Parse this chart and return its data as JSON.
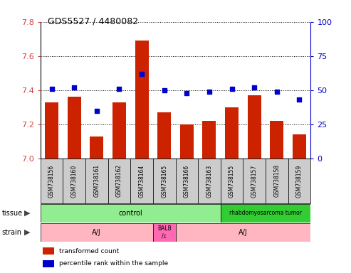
{
  "title": "GDS5527 / 4480082",
  "samples": [
    "GSM738156",
    "GSM738160",
    "GSM738161",
    "GSM738162",
    "GSM738164",
    "GSM738165",
    "GSM738166",
    "GSM738163",
    "GSM738155",
    "GSM738157",
    "GSM738158",
    "GSM738159"
  ],
  "red_values": [
    7.33,
    7.36,
    7.13,
    7.33,
    7.69,
    7.27,
    7.2,
    7.22,
    7.3,
    7.37,
    7.22,
    7.14
  ],
  "blue_values": [
    51,
    52,
    35,
    51,
    62,
    50,
    48,
    49,
    51,
    52,
    49,
    43
  ],
  "ylim_left": [
    7.0,
    7.8
  ],
  "ylim_right": [
    0,
    100
  ],
  "yticks_left": [
    7.0,
    7.2,
    7.4,
    7.6,
    7.8
  ],
  "yticks_right": [
    0,
    25,
    50,
    75,
    100
  ],
  "bar_color": "#CC2200",
  "dot_color": "#0000CC",
  "label_color_left": "#CC4444",
  "label_color_right": "#0000CC",
  "base_value": 7.0,
  "tissue_ctrl_color": "#90EE90",
  "tissue_rhabdo_color": "#32CD32",
  "strain_aj_color": "#FFB6C1",
  "strain_balb_color": "#FF69B4",
  "sample_box_color": "#CCCCCC"
}
